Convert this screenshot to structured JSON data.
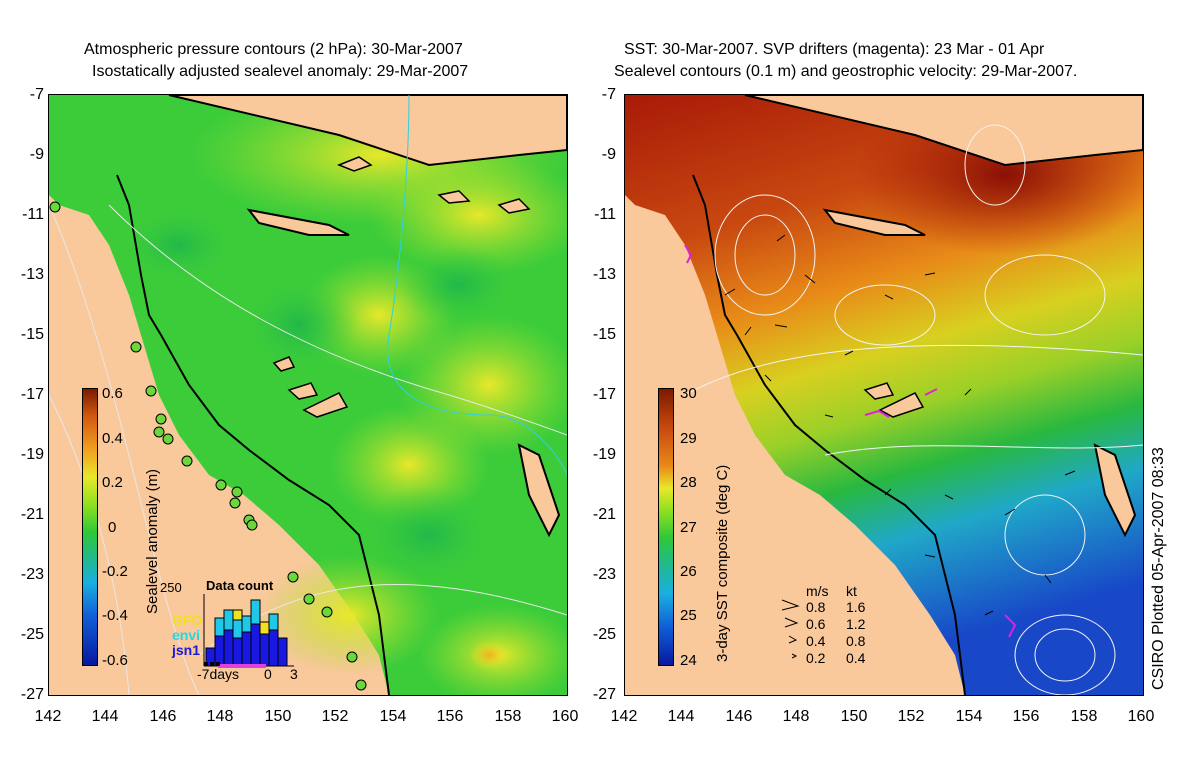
{
  "left_panel": {
    "title_line1": "Atmospheric pressure contours (2 hPa): 30-Mar-2007",
    "title_line2": "Isostatically adjusted sealevel anomaly: 29-Mar-2007",
    "colorbar_label": "Sealevel anomaly (m)",
    "colorbar_ticks": [
      "0.6",
      "0.4",
      "0.2",
      "0",
      "-0.2",
      "-0.4",
      "-0.6"
    ],
    "inset": {
      "title": "Data count",
      "y_tick": "250",
      "series": [
        "GFO",
        "envi",
        "jsn1"
      ],
      "x_ticks": [
        "-7days",
        "0",
        "3"
      ]
    }
  },
  "right_panel": {
    "title_line1": "SST: 30-Mar-2007. SVP drifters (magenta): 23 Mar - 01 Apr",
    "title_line2": "Sealevel contours (0.1 m) and geostrophic velocity: 29-Mar-2007.",
    "colorbar_label": "3-day SST composite (deg C)",
    "colorbar_ticks": [
      "30",
      "29",
      "28",
      "27",
      "26",
      "25",
      "24"
    ],
    "velocity_legend": {
      "header_ms": "m/s",
      "header_kt": "kt",
      "rows": [
        {
          "ms": "0.8",
          "kt": "1.6"
        },
        {
          "ms": "0.6",
          "kt": "1.2"
        },
        {
          "ms": "0.4",
          "kt": "0.8"
        },
        {
          "ms": "0.2",
          "kt": "0.4"
        }
      ]
    }
  },
  "y_axis_ticks": [
    "-7",
    "-9",
    "-11",
    "-13",
    "-15",
    "-17",
    "-19",
    "-21",
    "-23",
    "-25",
    "-27"
  ],
  "x_axis_ticks": [
    "142",
    "144",
    "146",
    "148",
    "150",
    "152",
    "154",
    "156",
    "158",
    "160"
  ],
  "credit": "CSIRO Plotted 05-Apr-2007 08:33",
  "colors": {
    "land": "#f9c89b",
    "ocean_green": "#2ec83a",
    "ocean_yellow": "#c8e62e",
    "sst_hot": "#a81a08",
    "sst_cool": "#1848c8"
  }
}
